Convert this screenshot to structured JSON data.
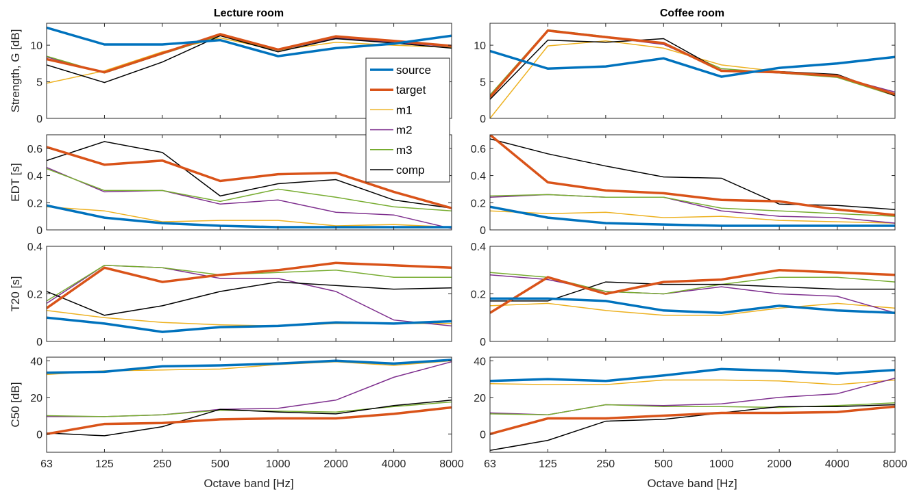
{
  "colors": {
    "source": "#0072BD",
    "target": "#D95319",
    "m1": "#EDB120",
    "m2": "#7E2F8E",
    "m3": "#77AC30",
    "comp": "#000000"
  },
  "legend": {
    "location": "top-right of Lecture room Strength panel",
    "entries": [
      "source",
      "target",
      "m1",
      "m2",
      "m3",
      "comp"
    ]
  },
  "columns": [
    {
      "title": "Lecture room"
    },
    {
      "title": "Coffee room"
    }
  ],
  "xlabel": "Octave band [Hz]",
  "xticks": [
    "63",
    "125",
    "250",
    "500",
    "1000",
    "2000",
    "4000",
    "8000"
  ],
  "chart_data": [
    {
      "type": "line",
      "panel": "Lecture room / Strength",
      "title": "Lecture room",
      "ylabel": "Strength, G [dB]",
      "ylim": [
        0,
        13
      ],
      "yticks": [
        "0",
        "5",
        "10"
      ],
      "xlabel": "",
      "categories": [
        "63",
        "125",
        "250",
        "500",
        "1000",
        "2000",
        "4000",
        "8000"
      ],
      "series": [
        {
          "name": "source",
          "values": [
            12.4,
            10.1,
            10.1,
            10.7,
            8.5,
            9.6,
            10.2,
            11.3
          ]
        },
        {
          "name": "target",
          "values": [
            8.1,
            6.3,
            8.9,
            11.5,
            9.4,
            11.2,
            10.6,
            9.9
          ]
        },
        {
          "name": "m1",
          "values": [
            4.8,
            6.5,
            9.1,
            11.0,
            9.3,
            10.4,
            10.0,
            9.7
          ]
        },
        {
          "name": "m2",
          "values": [
            8.4,
            6.2,
            8.8,
            11.3,
            9.3,
            11.0,
            10.4,
            9.8
          ]
        },
        {
          "name": "m3",
          "values": [
            8.5,
            6.2,
            8.8,
            11.3,
            9.3,
            11.1,
            10.5,
            9.9
          ]
        },
        {
          "name": "comp",
          "values": [
            7.3,
            4.9,
            7.7,
            11.3,
            9.1,
            10.9,
            10.3,
            9.6
          ]
        }
      ]
    },
    {
      "type": "line",
      "panel": "Coffee room / Strength",
      "title": "Coffee room",
      "ylabel": "",
      "ylim": [
        0,
        13
      ],
      "yticks": [
        "0",
        "5",
        "10"
      ],
      "xlabel": "",
      "categories": [
        "63",
        "125",
        "250",
        "500",
        "1000",
        "2000",
        "4000",
        "8000"
      ],
      "series": [
        {
          "name": "source",
          "values": [
            9.2,
            6.8,
            7.1,
            8.2,
            5.7,
            6.9,
            7.5,
            8.4
          ]
        },
        {
          "name": "target",
          "values": [
            2.9,
            12.0,
            11.1,
            10.3,
            6.5,
            6.3,
            5.8,
            3.3
          ]
        },
        {
          "name": "m1",
          "values": [
            0.0,
            9.9,
            10.6,
            9.6,
            7.3,
            6.4,
            5.8,
            3.2
          ]
        },
        {
          "name": "m2",
          "values": [
            3.0,
            12.0,
            11.1,
            10.1,
            6.6,
            6.2,
            5.7,
            3.6
          ]
        },
        {
          "name": "m3",
          "values": [
            3.2,
            12.1,
            11.2,
            10.2,
            6.8,
            6.2,
            5.6,
            3.1
          ]
        },
        {
          "name": "comp",
          "values": [
            2.6,
            10.7,
            10.4,
            10.9,
            6.5,
            6.4,
            6.0,
            3.1
          ]
        }
      ]
    },
    {
      "type": "line",
      "panel": "Lecture room / EDT",
      "ylabel": "EDT [s]",
      "ylim": [
        0,
        0.7
      ],
      "yticks": [
        "0",
        "0.2",
        "0.4",
        "0.6"
      ],
      "xlabel": "",
      "categories": [
        "63",
        "125",
        "250",
        "500",
        "1000",
        "2000",
        "4000",
        "8000"
      ],
      "series": [
        {
          "name": "source",
          "values": [
            0.18,
            0.09,
            0.05,
            0.03,
            0.02,
            0.02,
            0.02,
            0.02
          ]
        },
        {
          "name": "target",
          "values": [
            0.61,
            0.48,
            0.51,
            0.36,
            0.41,
            0.42,
            0.28,
            0.16
          ]
        },
        {
          "name": "m1",
          "values": [
            0.17,
            0.14,
            0.06,
            0.07,
            0.07,
            0.03,
            0.04,
            0.02
          ]
        },
        {
          "name": "m2",
          "values": [
            0.46,
            0.28,
            0.29,
            0.19,
            0.22,
            0.13,
            0.11,
            0.01
          ]
        },
        {
          "name": "m3",
          "values": [
            0.45,
            0.29,
            0.29,
            0.21,
            0.3,
            0.24,
            0.17,
            0.14
          ]
        },
        {
          "name": "comp",
          "values": [
            0.51,
            0.65,
            0.57,
            0.25,
            0.34,
            0.37,
            0.22,
            0.16
          ]
        }
      ]
    },
    {
      "type": "line",
      "panel": "Coffee room / EDT",
      "ylabel": "",
      "ylim": [
        0,
        0.7
      ],
      "yticks": [
        "0",
        "0.2",
        "0.4",
        "0.6"
      ],
      "xlabel": "",
      "categories": [
        "63",
        "125",
        "250",
        "500",
        "1000",
        "2000",
        "4000",
        "8000"
      ],
      "series": [
        {
          "name": "source",
          "values": [
            0.17,
            0.09,
            0.05,
            0.04,
            0.03,
            0.03,
            0.03,
            0.03
          ]
        },
        {
          "name": "target",
          "values": [
            0.7,
            0.35,
            0.29,
            0.27,
            0.22,
            0.21,
            0.15,
            0.11
          ]
        },
        {
          "name": "m1",
          "values": [
            0.14,
            0.12,
            0.13,
            0.09,
            0.1,
            0.07,
            0.06,
            0.05
          ]
        },
        {
          "name": "m2",
          "values": [
            0.24,
            0.26,
            0.24,
            0.24,
            0.14,
            0.1,
            0.09,
            0.05
          ]
        },
        {
          "name": "m3",
          "values": [
            0.25,
            0.26,
            0.24,
            0.24,
            0.16,
            0.14,
            0.12,
            0.1
          ]
        },
        {
          "name": "comp",
          "values": [
            0.67,
            0.56,
            0.47,
            0.39,
            0.38,
            0.19,
            0.18,
            0.15
          ]
        }
      ]
    },
    {
      "type": "line",
      "panel": "Lecture room / T20",
      "ylabel": "T20 [s]",
      "ylim": [
        0,
        0.4
      ],
      "yticks": [
        "0",
        "0.2",
        "0.4"
      ],
      "xlabel": "",
      "categories": [
        "63",
        "125",
        "250",
        "500",
        "1000",
        "2000",
        "4000",
        "8000"
      ],
      "series": [
        {
          "name": "source",
          "values": [
            0.1,
            0.075,
            0.04,
            0.06,
            0.065,
            0.08,
            0.075,
            0.085
          ]
        },
        {
          "name": "target",
          "values": [
            0.14,
            0.31,
            0.25,
            0.28,
            0.3,
            0.33,
            0.32,
            0.31
          ]
        },
        {
          "name": "m1",
          "values": [
            0.13,
            0.1,
            0.08,
            0.07,
            0.065,
            0.075,
            0.075,
            0.075
          ]
        },
        {
          "name": "m2",
          "values": [
            0.16,
            0.32,
            0.31,
            0.265,
            0.265,
            0.21,
            0.09,
            0.065
          ]
        },
        {
          "name": "m3",
          "values": [
            0.17,
            0.32,
            0.31,
            0.28,
            0.29,
            0.3,
            0.27,
            0.27
          ]
        },
        {
          "name": "comp",
          "values": [
            0.21,
            0.11,
            0.15,
            0.21,
            0.25,
            0.235,
            0.22,
            0.225
          ]
        }
      ]
    },
    {
      "type": "line",
      "panel": "Coffee room / T20",
      "ylabel": "",
      "ylim": [
        0,
        0.4
      ],
      "yticks": [
        "0",
        "0.2",
        "0.4"
      ],
      "xlabel": "",
      "categories": [
        "63",
        "125",
        "250",
        "500",
        "1000",
        "2000",
        "4000",
        "8000"
      ],
      "series": [
        {
          "name": "source",
          "values": [
            0.18,
            0.18,
            0.17,
            0.13,
            0.12,
            0.15,
            0.13,
            0.12
          ]
        },
        {
          "name": "target",
          "values": [
            0.12,
            0.27,
            0.2,
            0.25,
            0.26,
            0.3,
            0.29,
            0.28
          ]
        },
        {
          "name": "m1",
          "values": [
            0.15,
            0.16,
            0.13,
            0.11,
            0.11,
            0.14,
            0.16,
            0.14
          ]
        },
        {
          "name": "m2",
          "values": [
            0.28,
            0.26,
            0.21,
            0.2,
            0.23,
            0.2,
            0.19,
            0.12
          ]
        },
        {
          "name": "m3",
          "values": [
            0.29,
            0.27,
            0.21,
            0.2,
            0.24,
            0.27,
            0.27,
            0.25
          ]
        },
        {
          "name": "comp",
          "values": [
            0.17,
            0.17,
            0.25,
            0.24,
            0.24,
            0.23,
            0.22,
            0.22
          ]
        }
      ]
    },
    {
      "type": "line",
      "panel": "Lecture room / C50",
      "ylabel": "C50 [dB]",
      "ylim": [
        -10,
        42
      ],
      "yticks": [
        "0",
        "20",
        "40"
      ],
      "xlabel": "Octave band [Hz]",
      "categories": [
        "63",
        "125",
        "250",
        "500",
        "1000",
        "2000",
        "4000",
        "8000"
      ],
      "series": [
        {
          "name": "source",
          "values": [
            33.5,
            34.0,
            37.0,
            37.5,
            38.5,
            40.0,
            38.5,
            40.5
          ]
        },
        {
          "name": "target",
          "values": [
            0.0,
            5.5,
            6.0,
            8.0,
            8.5,
            8.5,
            11.0,
            14.5
          ]
        },
        {
          "name": "m1",
          "values": [
            32.5,
            34.5,
            35.0,
            35.5,
            38.0,
            39.5,
            37.5,
            40.0
          ]
        },
        {
          "name": "m2",
          "values": [
            9.5,
            9.5,
            10.5,
            13.5,
            14.0,
            18.5,
            31.0,
            39.5
          ]
        },
        {
          "name": "m3",
          "values": [
            10.0,
            9.5,
            10.5,
            13.0,
            12.5,
            12.0,
            15.0,
            17.5
          ]
        },
        {
          "name": "comp",
          "values": [
            0.5,
            -1.0,
            4.0,
            13.5,
            12.0,
            11.0,
            15.5,
            18.5
          ]
        }
      ]
    },
    {
      "type": "line",
      "panel": "Coffee room / C50",
      "ylabel": "",
      "ylim": [
        -10,
        42
      ],
      "yticks": [
        "0",
        "20",
        "40"
      ],
      "xlabel": "Octave band [Hz]",
      "categories": [
        "63",
        "125",
        "250",
        "500",
        "1000",
        "2000",
        "4000",
        "8000"
      ],
      "series": [
        {
          "name": "source",
          "values": [
            29.0,
            30.0,
            29.0,
            32.0,
            35.5,
            34.5,
            33.0,
            35.0
          ]
        },
        {
          "name": "target",
          "values": [
            0.0,
            8.5,
            8.5,
            10.0,
            11.5,
            11.5,
            12.0,
            15.0
          ]
        },
        {
          "name": "m1",
          "values": [
            27.5,
            27.0,
            27.0,
            29.5,
            29.5,
            29.0,
            27.0,
            29.5
          ]
        },
        {
          "name": "m2",
          "values": [
            11.5,
            10.5,
            16.0,
            15.5,
            16.5,
            20.0,
            22.0,
            30.5
          ]
        },
        {
          "name": "m3",
          "values": [
            11.0,
            10.5,
            16.0,
            15.0,
            15.0,
            14.5,
            15.5,
            17.0
          ]
        },
        {
          "name": "comp",
          "values": [
            -9.0,
            -3.5,
            7.0,
            8.0,
            11.5,
            15.0,
            15.0,
            16.0
          ]
        }
      ]
    }
  ]
}
